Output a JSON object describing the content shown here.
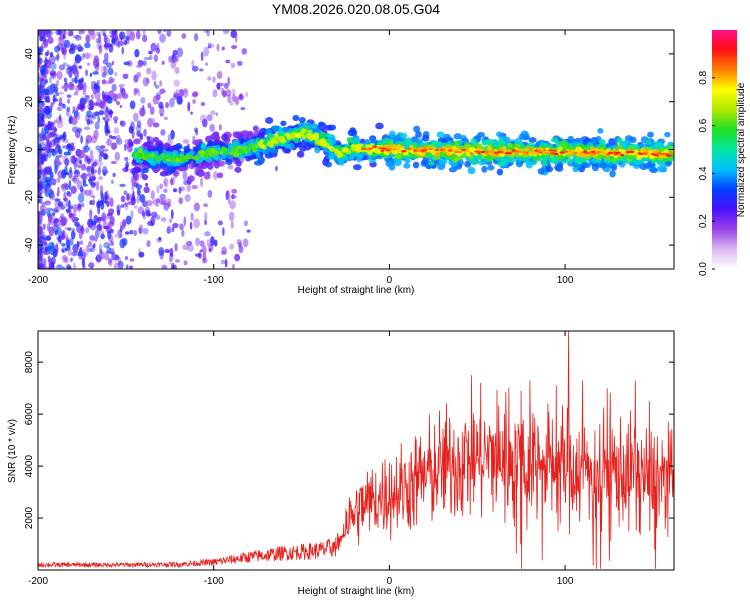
{
  "figure": {
    "title": "YM08.2026.020.08.05.G04"
  },
  "chart_data": [
    {
      "type": "heatmap",
      "name": "spectrogram",
      "xlabel": "Height of straight line (km)",
      "ylabel": "Frequency (Hz)",
      "xlim": [
        -200,
        162
      ],
      "ylim": [
        -50,
        50
      ],
      "xticks": [
        -200,
        -100,
        0,
        100
      ],
      "yticks": [
        -40,
        -20,
        0,
        20,
        40
      ],
      "grid": false,
      "colorbar": {
        "label": "Normalized spectral amplitude",
        "range": [
          0.0,
          1.0
        ],
        "ticks": [
          0.0,
          0.2,
          0.4,
          0.6,
          0.8
        ],
        "tick_labels": [
          "0.0",
          "0.2",
          "0.4",
          "0.6",
          "0.8"
        ],
        "colormap": [
          "#ffffff",
          "#d8b8f0",
          "#9a40e8",
          "#4a10ff",
          "#0040ff",
          "#00c0ff",
          "#00e8a0",
          "#20e020",
          "#b0e800",
          "#ffff00",
          "#ff8000",
          "#ff1010",
          "#ff1088"
        ]
      },
      "ridge_frequency_hz": [
        {
          "x": -140,
          "y": -3
        },
        {
          "x": -120,
          "y": -4
        },
        {
          "x": -100,
          "y": -1
        },
        {
          "x": -80,
          "y": 0
        },
        {
          "x": -70,
          "y": 3
        },
        {
          "x": -60,
          "y": 5
        },
        {
          "x": -50,
          "y": 7
        },
        {
          "x": -42,
          "y": 5
        },
        {
          "x": -35,
          "y": 2
        },
        {
          "x": -28,
          "y": -2
        },
        {
          "x": -22,
          "y": 1
        },
        {
          "x": -10,
          "y": 0
        },
        {
          "x": 0,
          "y": 0
        },
        {
          "x": 50,
          "y": -1
        },
        {
          "x": 100,
          "y": -1
        },
        {
          "x": 162,
          "y": -2
        }
      ]
    },
    {
      "type": "line",
      "name": "snr",
      "xlabel": "Height of straight line (km)",
      "ylabel": "SNR (10 * v/v)",
      "xlim": [
        -200,
        162
      ],
      "ylim": [
        0,
        9200
      ],
      "xticks": [
        -200,
        -100,
        0,
        100
      ],
      "yticks": [
        2000,
        4000,
        6000,
        8000
      ],
      "color": "#e8201c",
      "grid": false,
      "trend": [
        {
          "x": -200,
          "y": 200
        },
        {
          "x": -150,
          "y": 200
        },
        {
          "x": -120,
          "y": 220
        },
        {
          "x": -100,
          "y": 300
        },
        {
          "x": -80,
          "y": 500
        },
        {
          "x": -60,
          "y": 650
        },
        {
          "x": -40,
          "y": 750
        },
        {
          "x": -30,
          "y": 900
        },
        {
          "x": -25,
          "y": 1800
        },
        {
          "x": -15,
          "y": 2500
        },
        {
          "x": -5,
          "y": 2800
        },
        {
          "x": 10,
          "y": 3200
        },
        {
          "x": 25,
          "y": 3800
        },
        {
          "x": 45,
          "y": 4300
        },
        {
          "x": 60,
          "y": 4400
        },
        {
          "x": 80,
          "y": 4300
        },
        {
          "x": 100,
          "y": 4000
        },
        {
          "x": 120,
          "y": 3900
        },
        {
          "x": 140,
          "y": 3700
        },
        {
          "x": 162,
          "y": 3500
        }
      ],
      "peaks": [
        {
          "x": 102,
          "y": 9200
        },
        {
          "x": 95,
          "y": 7100
        },
        {
          "x": 80,
          "y": 7300
        },
        {
          "x": 75,
          "y": 6900
        },
        {
          "x": 110,
          "y": 7300
        },
        {
          "x": 124,
          "y": 7000
        },
        {
          "x": 140,
          "y": 7300
        },
        {
          "x": 148,
          "y": 6500
        }
      ]
    }
  ]
}
